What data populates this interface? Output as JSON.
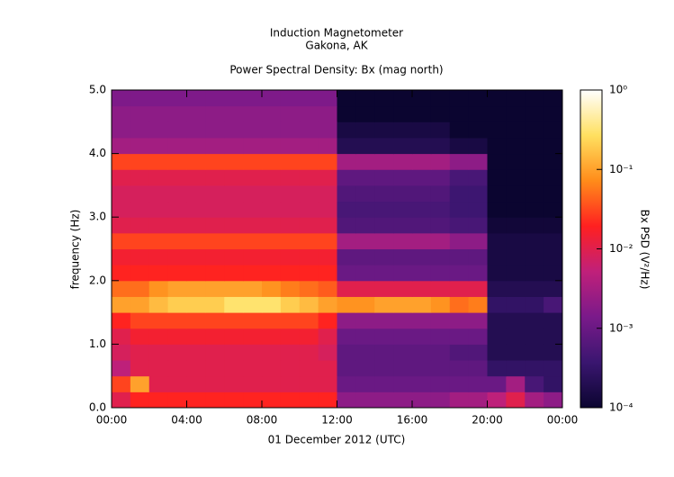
{
  "chart_data": {
    "type": "heatmap",
    "title": "Induction Magnetometer",
    "subtitle": "Gakona, AK",
    "plot_title": "Power Spectral Density: Bx (mag north)",
    "xlabel": "01 December 2012 (UTC)",
    "ylabel": "frequency (Hz)",
    "colorbar_label": "Bx PSD (V²/Hz)",
    "x_edges": [
      0,
      1,
      2,
      3,
      4,
      5,
      6,
      7,
      8,
      9,
      10,
      11,
      12,
      13,
      14,
      15,
      16,
      17,
      18,
      19,
      20,
      21,
      22,
      23,
      24
    ],
    "y_edges": [
      0,
      0.25,
      0.5,
      0.75,
      1,
      1.25,
      1.5,
      1.75,
      2,
      2.25,
      2.5,
      2.75,
      3,
      3.25,
      3.5,
      3.75,
      4,
      4.25,
      4.5,
      4.75,
      5
    ],
    "xlim": [
      0,
      24
    ],
    "ylim": [
      0,
      5
    ],
    "xticks": [
      {
        "value": 0,
        "label": "00:00"
      },
      {
        "value": 4,
        "label": "04:00"
      },
      {
        "value": 8,
        "label": "08:00"
      },
      {
        "value": 12,
        "label": "12:00"
      },
      {
        "value": 16,
        "label": "16:00"
      },
      {
        "value": 20,
        "label": "20:00"
      },
      {
        "value": 24,
        "label": "00:00"
      }
    ],
    "yticks": [
      {
        "value": 0,
        "label": "0.0"
      },
      {
        "value": 1,
        "label": "1.0"
      },
      {
        "value": 2,
        "label": "2.0"
      },
      {
        "value": 3,
        "label": "3.0"
      },
      {
        "value": 4,
        "label": "4.0"
      },
      {
        "value": 5,
        "label": "5.0"
      }
    ],
    "zlim": [
      0.0001,
      1
    ],
    "zscale": "log",
    "zticks": [
      {
        "value": 0.0001,
        "label": "10⁻⁴"
      },
      {
        "value": 0.001,
        "label": "10⁻³"
      },
      {
        "value": 0.01,
        "label": "10⁻²"
      },
      {
        "value": 0.1,
        "label": "10⁻¹"
      },
      {
        "value": 1,
        "label": "10⁰"
      }
    ],
    "colormap": [
      "#0b0530",
      "#3a1670",
      "#7a1a8a",
      "#c0207a",
      "#ff2020",
      "#ff8c1a",
      "#ffe060",
      "#ffffff"
    ],
    "z": [
      [
        0.01,
        0.02,
        0.02,
        0.02,
        0.02,
        0.02,
        0.02,
        0.02,
        0.02,
        0.02,
        0.02,
        0.02,
        0.002,
        0.002,
        0.002,
        0.002,
        0.002,
        0.002,
        0.003,
        0.003,
        0.005,
        0.01,
        0.003,
        0.002
      ],
      [
        0.03,
        0.1,
        0.01,
        0.01,
        0.01,
        0.01,
        0.01,
        0.01,
        0.01,
        0.01,
        0.01,
        0.01,
        0.001,
        0.001,
        0.001,
        0.001,
        0.001,
        0.001,
        0.001,
        0.001,
        0.001,
        0.003,
        0.0005,
        0.0003
      ],
      [
        0.005,
        0.01,
        0.01,
        0.01,
        0.01,
        0.01,
        0.01,
        0.01,
        0.01,
        0.01,
        0.01,
        0.01,
        0.0008,
        0.0008,
        0.0008,
        0.0008,
        0.0008,
        0.0008,
        0.0008,
        0.0008,
        0.0003,
        0.0003,
        0.0003,
        0.0003
      ],
      [
        0.008,
        0.01,
        0.01,
        0.01,
        0.01,
        0.01,
        0.01,
        0.01,
        0.01,
        0.01,
        0.01,
        0.008,
        0.0008,
        0.0008,
        0.0008,
        0.0008,
        0.0008,
        0.0008,
        0.0006,
        0.0006,
        0.0002,
        0.0002,
        0.0002,
        0.0002
      ],
      [
        0.01,
        0.015,
        0.015,
        0.015,
        0.015,
        0.015,
        0.015,
        0.015,
        0.015,
        0.015,
        0.015,
        0.01,
        0.001,
        0.001,
        0.001,
        0.001,
        0.001,
        0.001,
        0.001,
        0.001,
        0.0002,
        0.0002,
        0.0002,
        0.0002
      ],
      [
        0.02,
        0.03,
        0.03,
        0.03,
        0.03,
        0.03,
        0.03,
        0.03,
        0.03,
        0.03,
        0.03,
        0.02,
        0.002,
        0.002,
        0.002,
        0.002,
        0.002,
        0.002,
        0.002,
        0.002,
        0.0002,
        0.0002,
        0.0002,
        0.0002
      ],
      [
        0.1,
        0.1,
        0.15,
        0.2,
        0.2,
        0.2,
        0.3,
        0.3,
        0.3,
        0.2,
        0.15,
        0.1,
        0.08,
        0.08,
        0.1,
        0.1,
        0.1,
        0.08,
        0.05,
        0.06,
        0.0003,
        0.0003,
        0.0003,
        0.0005
      ],
      [
        0.05,
        0.05,
        0.08,
        0.1,
        0.1,
        0.1,
        0.1,
        0.1,
        0.08,
        0.06,
        0.05,
        0.04,
        0.01,
        0.01,
        0.01,
        0.01,
        0.01,
        0.01,
        0.01,
        0.01,
        0.0002,
        0.0002,
        0.0002,
        0.0002
      ],
      [
        0.02,
        0.02,
        0.02,
        0.02,
        0.02,
        0.02,
        0.02,
        0.02,
        0.02,
        0.02,
        0.02,
        0.02,
        0.001,
        0.001,
        0.001,
        0.001,
        0.001,
        0.001,
        0.001,
        0.001,
        0.00015,
        0.00015,
        0.00015,
        0.00015
      ],
      [
        0.015,
        0.015,
        0.015,
        0.015,
        0.015,
        0.015,
        0.015,
        0.015,
        0.015,
        0.015,
        0.015,
        0.015,
        0.0008,
        0.0008,
        0.0008,
        0.0008,
        0.0008,
        0.0008,
        0.0008,
        0.0008,
        0.00015,
        0.00015,
        0.00015,
        0.00015
      ],
      [
        0.03,
        0.03,
        0.03,
        0.03,
        0.03,
        0.03,
        0.03,
        0.03,
        0.03,
        0.03,
        0.03,
        0.03,
        0.003,
        0.003,
        0.003,
        0.003,
        0.003,
        0.003,
        0.002,
        0.002,
        0.00015,
        0.00015,
        0.00015,
        0.00015
      ],
      [
        0.01,
        0.01,
        0.01,
        0.01,
        0.01,
        0.01,
        0.01,
        0.01,
        0.01,
        0.01,
        0.01,
        0.01,
        0.0006,
        0.0006,
        0.0006,
        0.0006,
        0.0006,
        0.0006,
        0.0005,
        0.0005,
        0.00012,
        0.00012,
        0.00012,
        0.00012
      ],
      [
        0.008,
        0.008,
        0.008,
        0.008,
        0.008,
        0.008,
        0.008,
        0.008,
        0.008,
        0.008,
        0.008,
        0.008,
        0.0005,
        0.0005,
        0.0005,
        0.0005,
        0.0005,
        0.0005,
        0.0004,
        0.0004,
        0.0001,
        0.0001,
        0.0001,
        0.0001
      ],
      [
        0.008,
        0.008,
        0.008,
        0.008,
        0.008,
        0.008,
        0.008,
        0.008,
        0.008,
        0.008,
        0.008,
        0.008,
        0.0006,
        0.0006,
        0.0006,
        0.0006,
        0.0006,
        0.0006,
        0.0004,
        0.0004,
        0.0001,
        0.0001,
        0.0001,
        0.0001
      ],
      [
        0.01,
        0.01,
        0.01,
        0.01,
        0.01,
        0.01,
        0.01,
        0.01,
        0.01,
        0.01,
        0.01,
        0.01,
        0.0008,
        0.0008,
        0.0008,
        0.0008,
        0.0008,
        0.0008,
        0.0005,
        0.0005,
        0.0001,
        0.0001,
        0.0001,
        0.0001
      ],
      [
        0.03,
        0.03,
        0.03,
        0.03,
        0.03,
        0.03,
        0.03,
        0.03,
        0.03,
        0.03,
        0.03,
        0.03,
        0.003,
        0.003,
        0.003,
        0.003,
        0.003,
        0.003,
        0.002,
        0.002,
        0.0001,
        0.0001,
        0.0001,
        0.0001
      ],
      [
        0.003,
        0.003,
        0.003,
        0.003,
        0.003,
        0.003,
        0.003,
        0.003,
        0.003,
        0.003,
        0.003,
        0.003,
        0.0002,
        0.0002,
        0.0002,
        0.0002,
        0.0002,
        0.0002,
        0.00015,
        0.00015,
        0.0001,
        0.0001,
        0.0001,
        0.0001
      ],
      [
        0.002,
        0.002,
        0.002,
        0.002,
        0.002,
        0.002,
        0.002,
        0.002,
        0.002,
        0.002,
        0.002,
        0.002,
        0.00015,
        0.00015,
        0.00015,
        0.00015,
        0.00015,
        0.00015,
        0.0001,
        0.0001,
        0.0001,
        0.0001,
        0.0001,
        0.0001
      ],
      [
        0.002,
        0.002,
        0.002,
        0.002,
        0.002,
        0.002,
        0.002,
        0.002,
        0.002,
        0.002,
        0.002,
        0.002,
        0.0001,
        0.0001,
        0.0001,
        0.0001,
        0.0001,
        0.0001,
        0.0001,
        0.0001,
        0.0001,
        0.0001,
        0.0001,
        0.0001
      ],
      [
        0.0015,
        0.0015,
        0.0015,
        0.0015,
        0.0015,
        0.0015,
        0.0015,
        0.0015,
        0.0015,
        0.0015,
        0.0015,
        0.0015,
        0.0001,
        0.0001,
        0.0001,
        0.0001,
        0.0001,
        0.0001,
        0.0001,
        0.0001,
        0.0001,
        0.0001,
        0.0001,
        0.0001
      ]
    ]
  }
}
